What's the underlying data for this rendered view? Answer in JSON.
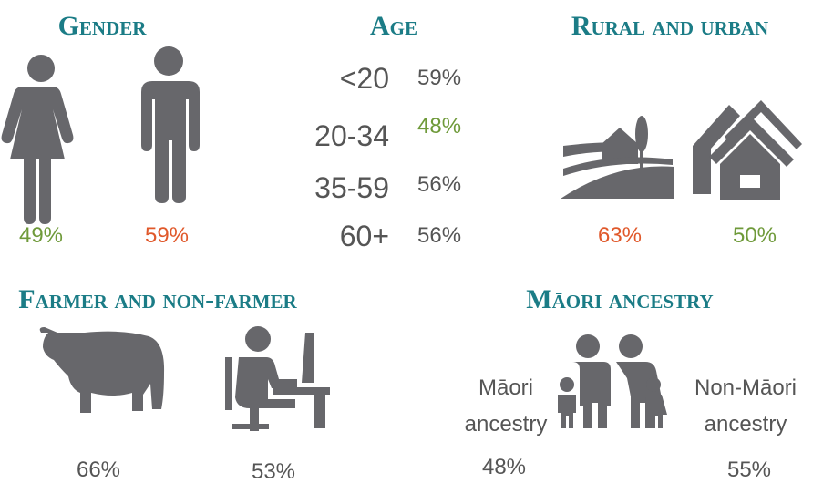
{
  "gender": {
    "title": "Gender",
    "items": [
      {
        "value": "49%",
        "color": "#6f9a3a"
      },
      {
        "value": "59%",
        "color": "#e0582a"
      }
    ]
  },
  "age": {
    "title": "Age",
    "rows": [
      {
        "label": "<20",
        "value": "59%",
        "color": "#555555"
      },
      {
        "label": "20-34",
        "value": "48%",
        "color": "#6f9a3a"
      },
      {
        "label": "35-59",
        "value": "56%",
        "color": "#555555"
      },
      {
        "label": "60+",
        "value": "56%",
        "color": "#555555"
      }
    ]
  },
  "rural_urban": {
    "title": "Rural and urban",
    "items": [
      {
        "value": "63%",
        "color": "#e0582a"
      },
      {
        "value": "50%",
        "color": "#6f9a3a"
      }
    ]
  },
  "farmer": {
    "title": "Farmer and non-farmer",
    "items": [
      {
        "value": "66%",
        "color": "#555555"
      },
      {
        "value": "53%",
        "color": "#555555"
      }
    ]
  },
  "maori": {
    "title": "Māori ancestry",
    "items": [
      {
        "label": [
          "Māori",
          "ancestry"
        ],
        "value": "48%",
        "color": "#555555"
      },
      {
        "label": [
          "Non-Māori",
          "ancestry"
        ],
        "value": "55%",
        "color": "#555555"
      }
    ]
  }
}
